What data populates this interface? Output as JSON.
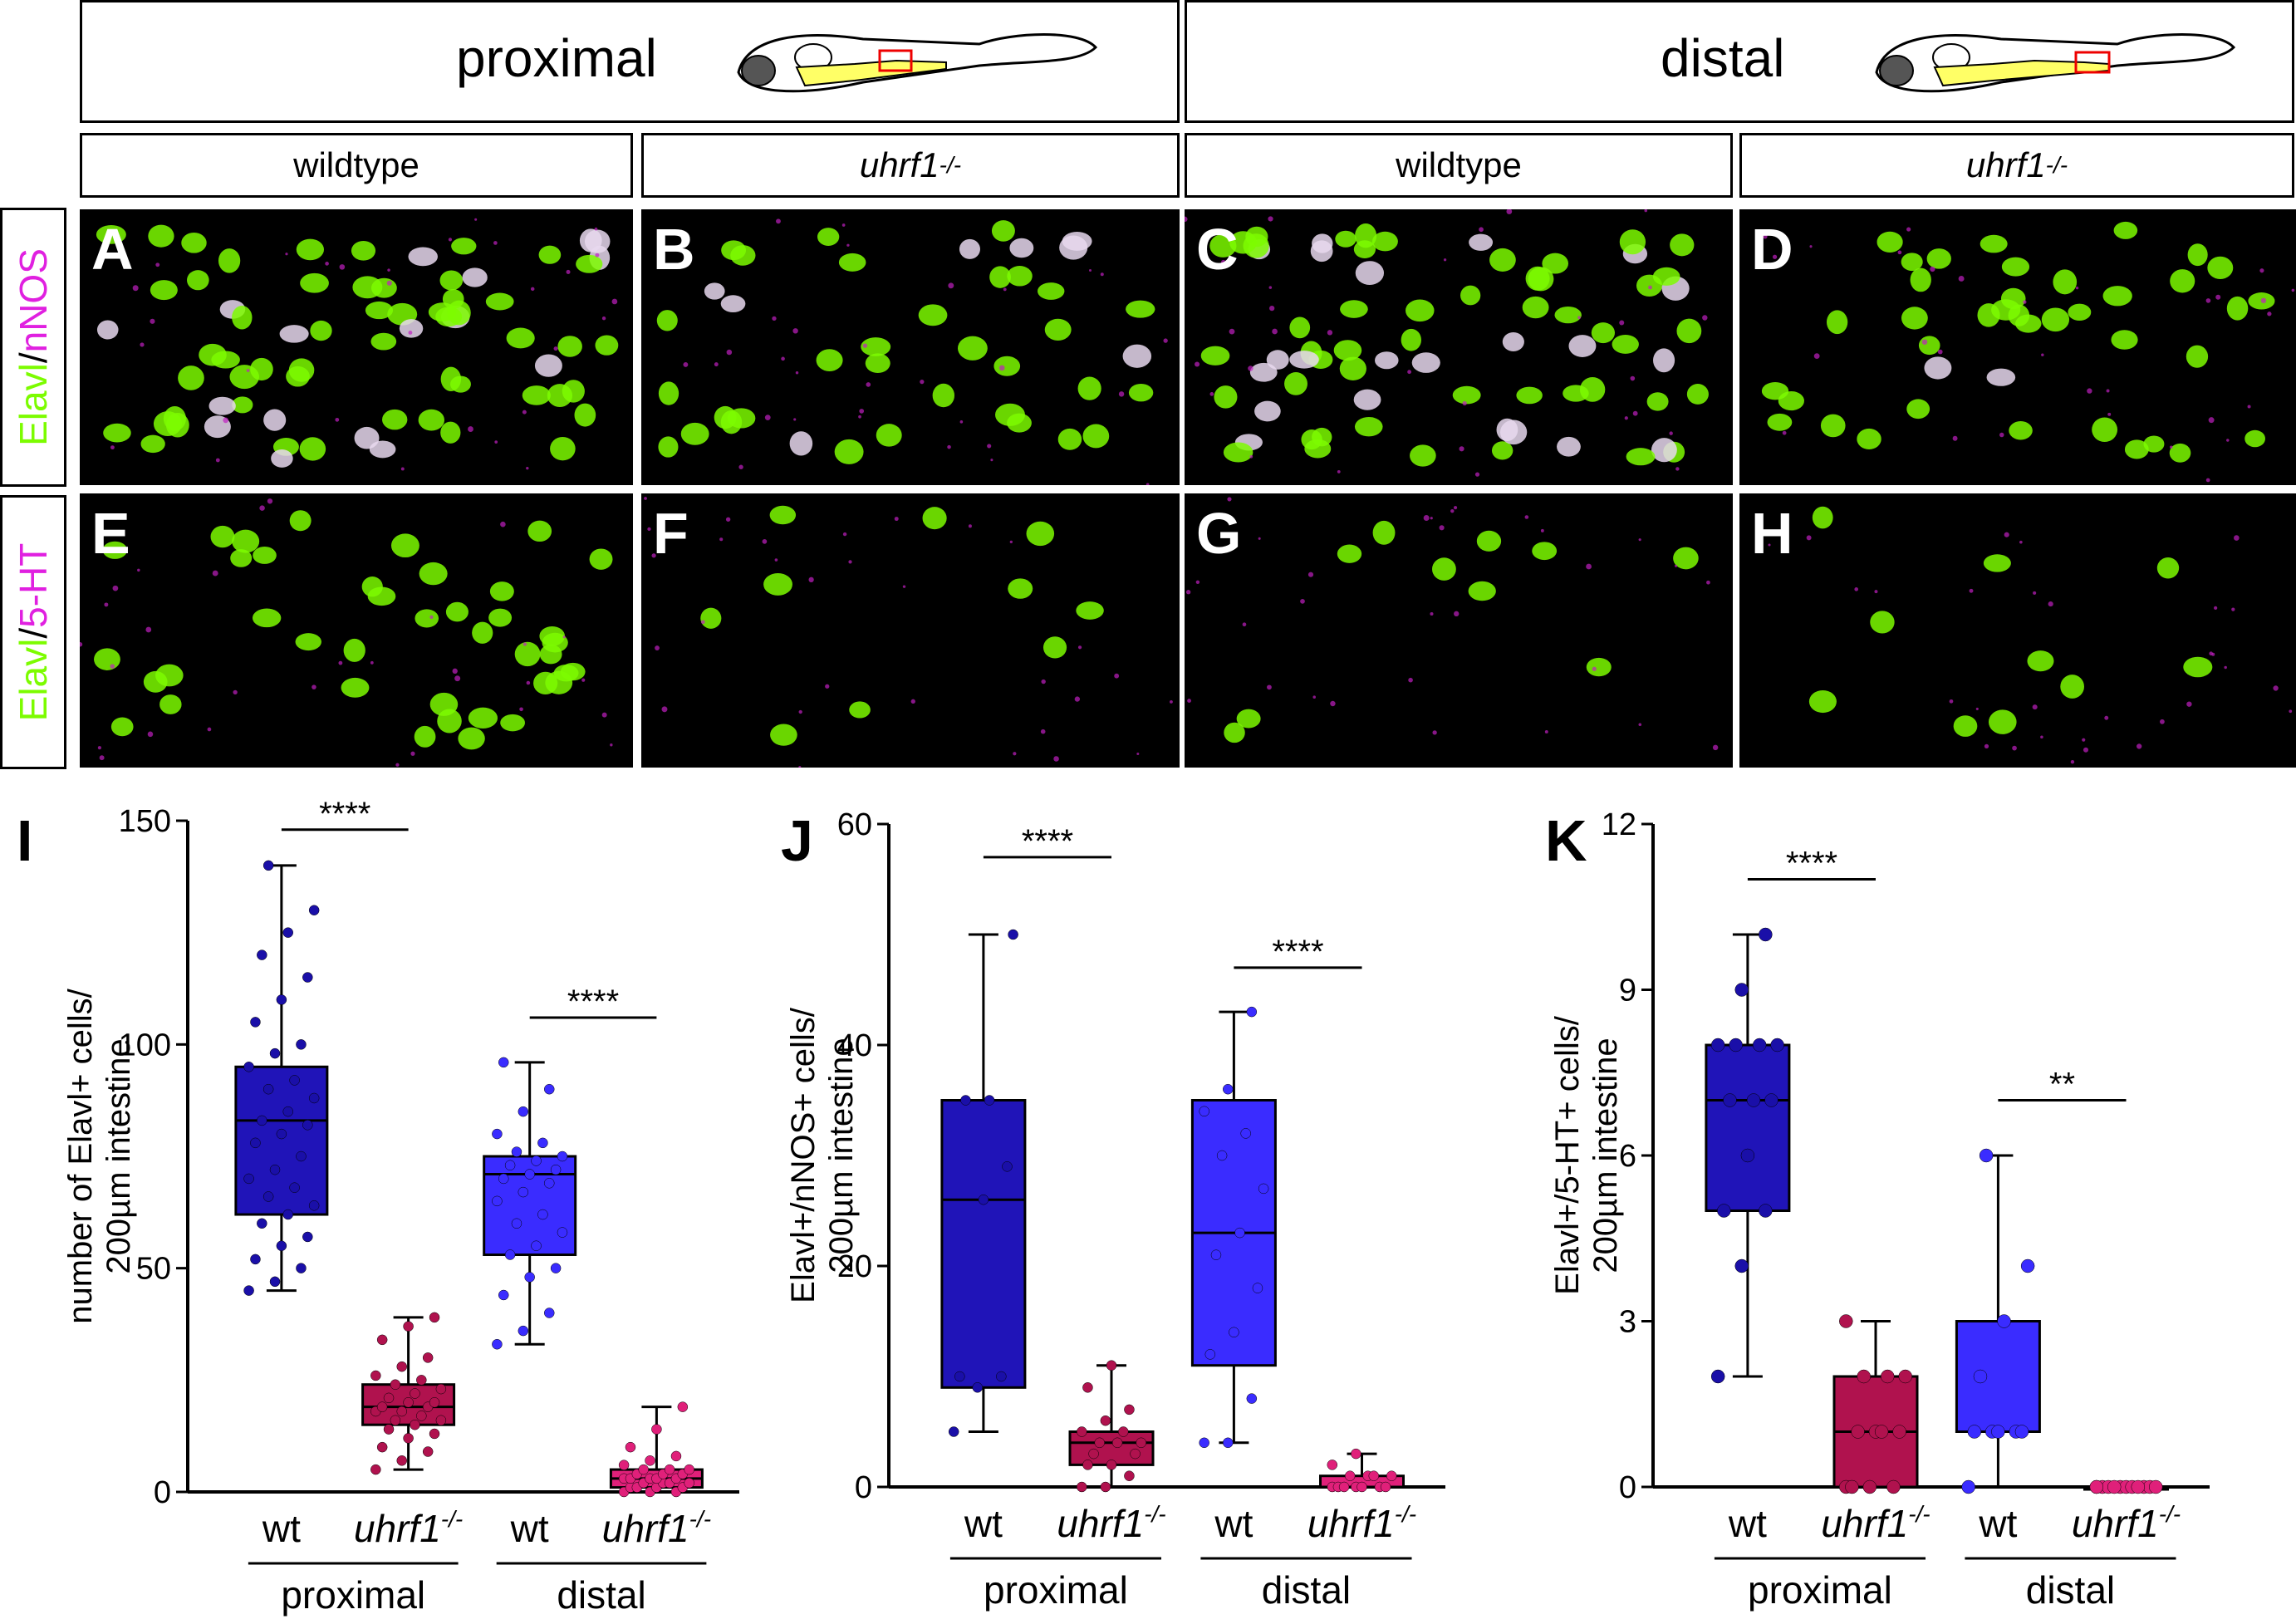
{
  "headers": {
    "proximal": "proximal",
    "distal": "distal",
    "sub": [
      "wildtype",
      "uhrf1",
      "wildtype",
      "uhrf1"
    ],
    "sub_sup": "-/-"
  },
  "rows": {
    "row1": {
      "a": "Elavl",
      "sep": "/",
      "b": "nNOS"
    },
    "row2": {
      "a": "Elavl",
      "sep": "/",
      "b": "5-HT"
    }
  },
  "panels": [
    "A",
    "B",
    "C",
    "D",
    "E",
    "F",
    "G",
    "H"
  ],
  "colors": {
    "green": "#7cfc00",
    "magenta": "#e020e0",
    "wt_prox": "#1a0fa8",
    "mut_prox": "#b0124e",
    "wt_dist": "#3a2cff",
    "mut_dist": "#e0207a"
  },
  "chart_data": [
    {
      "panel": "I",
      "type": "box",
      "ylabel": [
        "number of  Elavl+ cells/",
        "200µm intestine"
      ],
      "ylim": [
        0,
        150
      ],
      "yticks": [
        0,
        50,
        100,
        150
      ],
      "categories": [
        "wt",
        "uhrf1",
        "wt",
        "uhrf1"
      ],
      "groups": [
        "proximal",
        "distal"
      ],
      "boxes": [
        {
          "min": 45,
          "q1": 62,
          "median": 83,
          "q3": 95,
          "max": 140,
          "points": [
            45,
            47,
            50,
            52,
            55,
            57,
            60,
            62,
            64,
            66,
            68,
            70,
            72,
            75,
            78,
            80,
            82,
            83,
            85,
            88,
            90,
            92,
            95,
            98,
            100,
            105,
            110,
            115,
            120,
            125,
            130,
            140
          ]
        },
        {
          "min": 5,
          "q1": 15,
          "median": 19,
          "q3": 24,
          "max": 39,
          "points": [
            5,
            7,
            9,
            10,
            12,
            13,
            14,
            15,
            16,
            16,
            17,
            18,
            18,
            19,
            19,
            20,
            20,
            21,
            22,
            23,
            24,
            25,
            26,
            28,
            30,
            34,
            37,
            39
          ]
        },
        {
          "min": 33,
          "q1": 53,
          "median": 71,
          "q3": 75,
          "max": 96,
          "points": [
            33,
            36,
            40,
            44,
            48,
            50,
            53,
            55,
            58,
            60,
            62,
            65,
            67,
            69,
            70,
            71,
            72,
            73,
            74,
            75,
            76,
            78,
            80,
            85,
            90,
            96
          ]
        },
        {
          "min": 0,
          "q1": 1,
          "median": 3,
          "q3": 5,
          "max": 19,
          "points": [
            0,
            0,
            0,
            1,
            1,
            1,
            1,
            2,
            2,
            2,
            2,
            3,
            3,
            3,
            3,
            3,
            4,
            4,
            4,
            5,
            5,
            5,
            6,
            7,
            8,
            10,
            14,
            19
          ]
        }
      ],
      "significance": [
        {
          "label": "****",
          "between": [
            0,
            1
          ],
          "y": 148
        },
        {
          "label": "****",
          "between": [
            2,
            3
          ],
          "y": 106
        }
      ]
    },
    {
      "panel": "J",
      "type": "box",
      "ylabel": [
        "Elavl+/nNOS+ cells/",
        "200µm intestine"
      ],
      "ylim": [
        0,
        60
      ],
      "yticks": [
        0,
        20,
        40,
        60
      ],
      "categories": [
        "wt",
        "uhrf1",
        "wt",
        "uhrf1"
      ],
      "groups": [
        "proximal",
        "distal"
      ],
      "boxes": [
        {
          "min": 5,
          "q1": 9,
          "median": 26,
          "q3": 35,
          "max": 50,
          "points": [
            5,
            9,
            10,
            10,
            26,
            29,
            35,
            35,
            50
          ]
        },
        {
          "min": 0,
          "q1": 2,
          "median": 4,
          "q3": 5,
          "max": 11,
          "points": [
            0,
            0,
            1,
            2,
            2,
            3,
            3,
            4,
            4,
            4,
            5,
            5,
            6,
            7,
            9,
            11
          ]
        },
        {
          "min": 4,
          "q1": 11,
          "median": 23,
          "q3": 35,
          "max": 43,
          "points": [
            4,
            4,
            8,
            12,
            14,
            18,
            21,
            23,
            27,
            30,
            32,
            34,
            36,
            43
          ]
        },
        {
          "min": 0,
          "q1": 0,
          "median": 0,
          "q3": 1,
          "max": 3,
          "points": [
            0,
            0,
            0,
            0,
            0,
            0,
            0,
            1,
            1,
            1,
            1,
            2,
            3
          ]
        }
      ],
      "significance": [
        {
          "label": "****",
          "between": [
            0,
            1
          ],
          "y": 57
        },
        {
          "label": "****",
          "between": [
            2,
            3
          ],
          "y": 47
        }
      ]
    },
    {
      "panel": "K",
      "type": "box",
      "ylabel": [
        "Elavl+/5-HT+ cells/",
        "200µm intestine"
      ],
      "ylim": [
        0,
        12
      ],
      "yticks": [
        0,
        3,
        6,
        9,
        12
      ],
      "categories": [
        "wt",
        "uhrf1",
        "wt",
        "uhrf1"
      ],
      "groups": [
        "proximal",
        "distal"
      ],
      "boxes": [
        {
          "min": 2,
          "q1": 5,
          "median": 7,
          "q3": 8,
          "max": 10,
          "points": [
            2,
            4,
            5,
            5,
            6,
            7,
            7,
            7,
            8,
            8,
            8,
            8,
            9,
            10
          ]
        },
        {
          "min": 0,
          "q1": 0,
          "median": 1,
          "q3": 2,
          "max": 3,
          "points": [
            0,
            0,
            0,
            0,
            1,
            1,
            1,
            1,
            2,
            2,
            2,
            3
          ]
        },
        {
          "min": 0,
          "q1": 1,
          "median": 1,
          "q3": 3,
          "max": 6,
          "points": [
            0,
            1,
            1,
            1,
            1,
            1,
            2,
            3,
            4,
            6
          ]
        },
        {
          "min": 0,
          "q1": 0,
          "median": 0,
          "q3": 0,
          "max": 0,
          "points": [
            0,
            0,
            0,
            0,
            0,
            0,
            0,
            0,
            0,
            0,
            0,
            0
          ]
        }
      ],
      "significance": [
        {
          "label": "****",
          "between": [
            0,
            1
          ],
          "y": 11
        },
        {
          "label": "**",
          "between": [
            2,
            3
          ],
          "y": 7
        }
      ]
    }
  ]
}
